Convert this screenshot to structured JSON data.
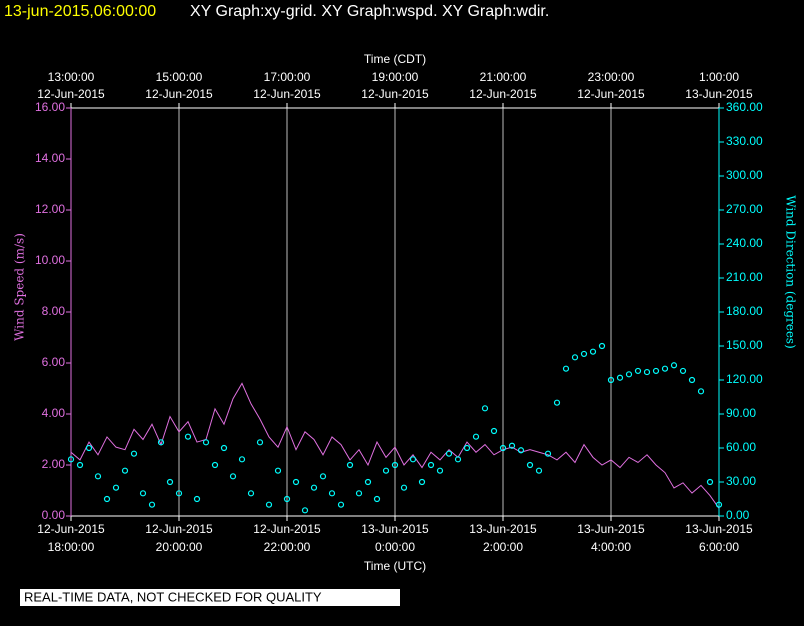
{
  "chart_data": {
    "type": "line-scatter",
    "header_time": "13-jun-2015,06:00:00",
    "title": "XY Graph:xy-grid.  XY Graph:wspd.  XY Graph:wdir.",
    "xlabel": "Time (UTC)",
    "x2label": "Time (CDT)",
    "ylabel": "Wind Speed (m/s)",
    "y2label": "Wind Direction (degrees)",
    "footer": "REAL-TIME DATA, NOT CHECKED FOR QUALITY",
    "grid": true,
    "xlim": [
      "2015-06-12 18:00",
      "2015-06-13 06:00"
    ],
    "xticks": [
      {
        "value": "2015-06-12 18:00",
        "label": [
          "12-Jun-2015",
          "18:00:00"
        ]
      },
      {
        "value": "2015-06-12 20:00",
        "label": [
          "12-Jun-2015",
          "20:00:00"
        ]
      },
      {
        "value": "2015-06-12 22:00",
        "label": [
          "12-Jun-2015",
          "22:00:00"
        ]
      },
      {
        "value": "2015-06-13 00:00",
        "label": [
          "13-Jun-2015",
          "0:00:00"
        ]
      },
      {
        "value": "2015-06-13 02:00",
        "label": [
          "13-Jun-2015",
          "2:00:00"
        ]
      },
      {
        "value": "2015-06-13 04:00",
        "label": [
          "13-Jun-2015",
          "4:00:00"
        ]
      },
      {
        "value": "2015-06-13 06:00",
        "label": [
          "13-Jun-2015",
          "6:00:00"
        ]
      }
    ],
    "x2ticks": [
      {
        "value": "2015-06-12 18:00",
        "label": [
          "13:00:00",
          "12-Jun-2015"
        ]
      },
      {
        "value": "2015-06-12 20:00",
        "label": [
          "15:00:00",
          "12-Jun-2015"
        ]
      },
      {
        "value": "2015-06-12 22:00",
        "label": [
          "17:00:00",
          "12-Jun-2015"
        ]
      },
      {
        "value": "2015-06-13 00:00",
        "label": [
          "19:00:00",
          "12-Jun-2015"
        ]
      },
      {
        "value": "2015-06-13 02:00",
        "label": [
          "21:00:00",
          "12-Jun-2015"
        ]
      },
      {
        "value": "2015-06-13 04:00",
        "label": [
          "23:00:00",
          "12-Jun-2015"
        ]
      },
      {
        "value": "2015-06-13 06:00",
        "label": [
          "1:00:00",
          "13-Jun-2015"
        ]
      }
    ],
    "ylim": [
      0,
      16
    ],
    "yticks": [
      {
        "value": 0,
        "label": "0.00"
      },
      {
        "value": 2,
        "label": "2.00"
      },
      {
        "value": 4,
        "label": "4.00"
      },
      {
        "value": 6,
        "label": "6.00"
      },
      {
        "value": 8,
        "label": "8.00"
      },
      {
        "value": 10,
        "label": "10.00"
      },
      {
        "value": 12,
        "label": "12.00"
      },
      {
        "value": 14,
        "label": "14.00"
      },
      {
        "value": 16,
        "label": "16.00"
      }
    ],
    "y2lim": [
      0,
      360
    ],
    "y2ticks": [
      {
        "value": 0,
        "label": "0.00"
      },
      {
        "value": 30,
        "label": "30.00"
      },
      {
        "value": 60,
        "label": "60.00"
      },
      {
        "value": 90,
        "label": "90.00"
      },
      {
        "value": 120,
        "label": "120.00"
      },
      {
        "value": 150,
        "label": "150.00"
      },
      {
        "value": 180,
        "label": "180.00"
      },
      {
        "value": 210,
        "label": "210.00"
      },
      {
        "value": 240,
        "label": "240.00"
      },
      {
        "value": 270,
        "label": "270.00"
      },
      {
        "value": 300,
        "label": "300.00"
      },
      {
        "value": 330,
        "label": "330.00"
      },
      {
        "value": 360,
        "label": "360.00"
      }
    ],
    "x": [
      "2015-06-12 18:00",
      "2015-06-12 18:10",
      "2015-06-12 18:20",
      "2015-06-12 18:30",
      "2015-06-12 18:40",
      "2015-06-12 18:50",
      "2015-06-12 19:00",
      "2015-06-12 19:10",
      "2015-06-12 19:20",
      "2015-06-12 19:30",
      "2015-06-12 19:40",
      "2015-06-12 19:50",
      "2015-06-12 20:00",
      "2015-06-12 20:10",
      "2015-06-12 20:20",
      "2015-06-12 20:30",
      "2015-06-12 20:40",
      "2015-06-12 20:50",
      "2015-06-12 21:00",
      "2015-06-12 21:10",
      "2015-06-12 21:20",
      "2015-06-12 21:30",
      "2015-06-12 21:40",
      "2015-06-12 21:50",
      "2015-06-12 22:00",
      "2015-06-12 22:10",
      "2015-06-12 22:20",
      "2015-06-12 22:30",
      "2015-06-12 22:40",
      "2015-06-12 22:50",
      "2015-06-12 23:00",
      "2015-06-12 23:10",
      "2015-06-12 23:20",
      "2015-06-12 23:30",
      "2015-06-12 23:40",
      "2015-06-12 23:50",
      "2015-06-13 00:00",
      "2015-06-13 00:10",
      "2015-06-13 00:20",
      "2015-06-13 00:30",
      "2015-06-13 00:40",
      "2015-06-13 00:50",
      "2015-06-13 01:00",
      "2015-06-13 01:10",
      "2015-06-13 01:20",
      "2015-06-13 01:30",
      "2015-06-13 01:40",
      "2015-06-13 01:50",
      "2015-06-13 02:00",
      "2015-06-13 02:10",
      "2015-06-13 02:20",
      "2015-06-13 02:30",
      "2015-06-13 02:40",
      "2015-06-13 02:50",
      "2015-06-13 03:00",
      "2015-06-13 03:10",
      "2015-06-13 03:20",
      "2015-06-13 03:30",
      "2015-06-13 03:40",
      "2015-06-13 03:50",
      "2015-06-13 04:00",
      "2015-06-13 04:10",
      "2015-06-13 04:20",
      "2015-06-13 04:30",
      "2015-06-13 04:40",
      "2015-06-13 04:50",
      "2015-06-13 05:00",
      "2015-06-13 05:10",
      "2015-06-13 05:20",
      "2015-06-13 05:30",
      "2015-06-13 05:40",
      "2015-06-13 05:50",
      "2015-06-13 06:00"
    ],
    "series": [
      {
        "color": "#e070e0",
        "axis": "y",
        "values": [
          2.5,
          2.2,
          2.9,
          2.4,
          3.1,
          2.7,
          2.6,
          3.4,
          3.0,
          3.6,
          2.8,
          3.9,
          3.3,
          3.7,
          2.9,
          3.0,
          4.2,
          3.6,
          4.6,
          5.2,
          4.4,
          3.8,
          3.1,
          2.7,
          3.5,
          2.6,
          3.3,
          3.0,
          2.4,
          3.1,
          2.8,
          2.2,
          2.6,
          2.0,
          2.9,
          2.3,
          2.7,
          2.0,
          2.4,
          1.9,
          2.5,
          2.2,
          2.6,
          2.3,
          2.9,
          2.5,
          2.8,
          2.4,
          2.6,
          2.7,
          2.5,
          2.6,
          2.5,
          2.4,
          2.2,
          2.5,
          2.1,
          2.8,
          2.3,
          2.0,
          2.2,
          1.9,
          2.3,
          2.1,
          2.4,
          2.0,
          1.7,
          1.1,
          1.3,
          0.9,
          1.2,
          0.8,
          0.3
        ]
      },
      {
        "color": "#00ffff",
        "axis": "y2",
        "values": [
          50,
          45,
          60,
          35,
          15,
          25,
          40,
          55,
          20,
          10,
          65,
          30,
          20,
          70,
          15,
          65,
          45,
          60,
          35,
          50,
          20,
          65,
          10,
          40,
          15,
          30,
          5,
          25,
          35,
          20,
          10,
          45,
          20,
          30,
          15,
          40,
          45,
          25,
          50,
          30,
          45,
          40,
          55,
          50,
          60,
          70,
          95,
          75,
          60,
          62,
          58,
          45,
          40,
          55,
          100,
          130,
          140,
          143,
          145,
          150,
          120,
          122,
          125,
          128,
          127,
          128,
          130,
          133,
          128,
          120,
          110,
          30,
          10
        ]
      }
    ]
  }
}
